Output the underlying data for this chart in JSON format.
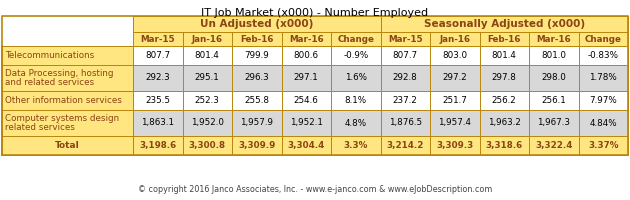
{
  "title": "IT Job Market (x000) - Number Employed",
  "footer": "© copyright 2016 Janco Associates, Inc. - www.e-janco.com & www.eJobDescription.com",
  "col_header_row1_unadj": "Un Adjusted (x000)",
  "col_header_row1_sadj": "Seasonally Adjusted (x000)",
  "col_header_row2": [
    "Mar-15",
    "Jan-16",
    "Feb-16",
    "Mar-16",
    "Change",
    "Mar-15",
    "Jan-16",
    "Feb-16",
    "Mar-16",
    "Change"
  ],
  "rows": [
    [
      "Telecommunications",
      "807.7",
      "801.4",
      "799.9",
      "800.6",
      "-0.9%",
      "807.7",
      "803.0",
      "801.4",
      "801.0",
      "-0.83%"
    ],
    [
      "Data Processing, hosting\nand related services",
      "292.3",
      "295.1",
      "296.3",
      "297.1",
      "1.6%",
      "292.8",
      "297.2",
      "297.8",
      "298.0",
      "1.78%"
    ],
    [
      "Other information services",
      "235.5",
      "252.3",
      "255.8",
      "254.6",
      "8.1%",
      "237.2",
      "251.7",
      "256.2",
      "256.1",
      "7.97%"
    ],
    [
      "Computer systems design\nrelated services",
      "1,863.1",
      "1,952.0",
      "1,957.9",
      "1,952.1",
      "4.8%",
      "1,876.5",
      "1,957.4",
      "1,963.2",
      "1,967.3",
      "4.84%"
    ],
    [
      "Total",
      "3,198.6",
      "3,300.8",
      "3,309.9",
      "3,304.4",
      "3.3%",
      "3,214.2",
      "3,309.3",
      "3,318.6",
      "3,322.4",
      "3.37%"
    ]
  ],
  "header_bg": "#FFE680",
  "header_text": "#8B4513",
  "label_bg": "#FFE680",
  "label_text": "#8B4513",
  "row_even_bg": "#FFFFFF",
  "row_odd_bg": "#D8D8D8",
  "total_bg": "#FFE680",
  "total_text": "#8B4513",
  "border_color": "#B8860B",
  "title_color": "#000000",
  "footer_color": "#444444",
  "data_text": "#000000"
}
